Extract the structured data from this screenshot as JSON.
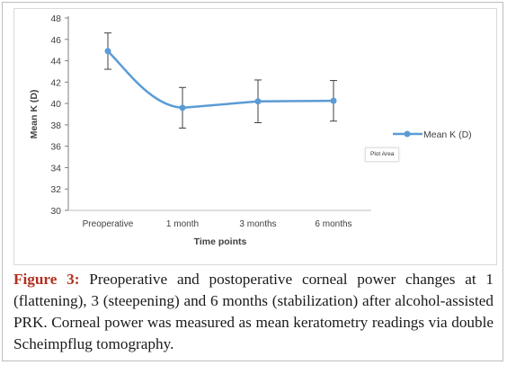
{
  "chart_data": {
    "type": "line",
    "categories": [
      "Preoperative",
      "1 month",
      "3 months",
      "6 months"
    ],
    "series": [
      {
        "name": "Mean K (D)",
        "values": [
          44.9,
          39.6,
          40.2,
          40.25
        ],
        "error": [
          1.7,
          1.9,
          2.0,
          1.9
        ],
        "color": "#5b9bd5"
      }
    ],
    "ylabel": "Mean K (D)",
    "xlabel": "Time points",
    "ylim": [
      30,
      48
    ],
    "yticks": [
      30,
      32,
      34,
      36,
      38,
      40,
      42,
      44,
      46,
      48
    ],
    "grid": false,
    "legend": "right"
  },
  "tooltip": "Plot Area",
  "caption": {
    "label": "Figure 3:",
    "text": " Preoperative and postoperative corneal power changes at 1 (flattening), 3 (steepening) and 6 months (stabilization) after alcohol-assisted PRK. Corneal power was measured as mean keratometry readings via double Scheimpflug tomography."
  }
}
